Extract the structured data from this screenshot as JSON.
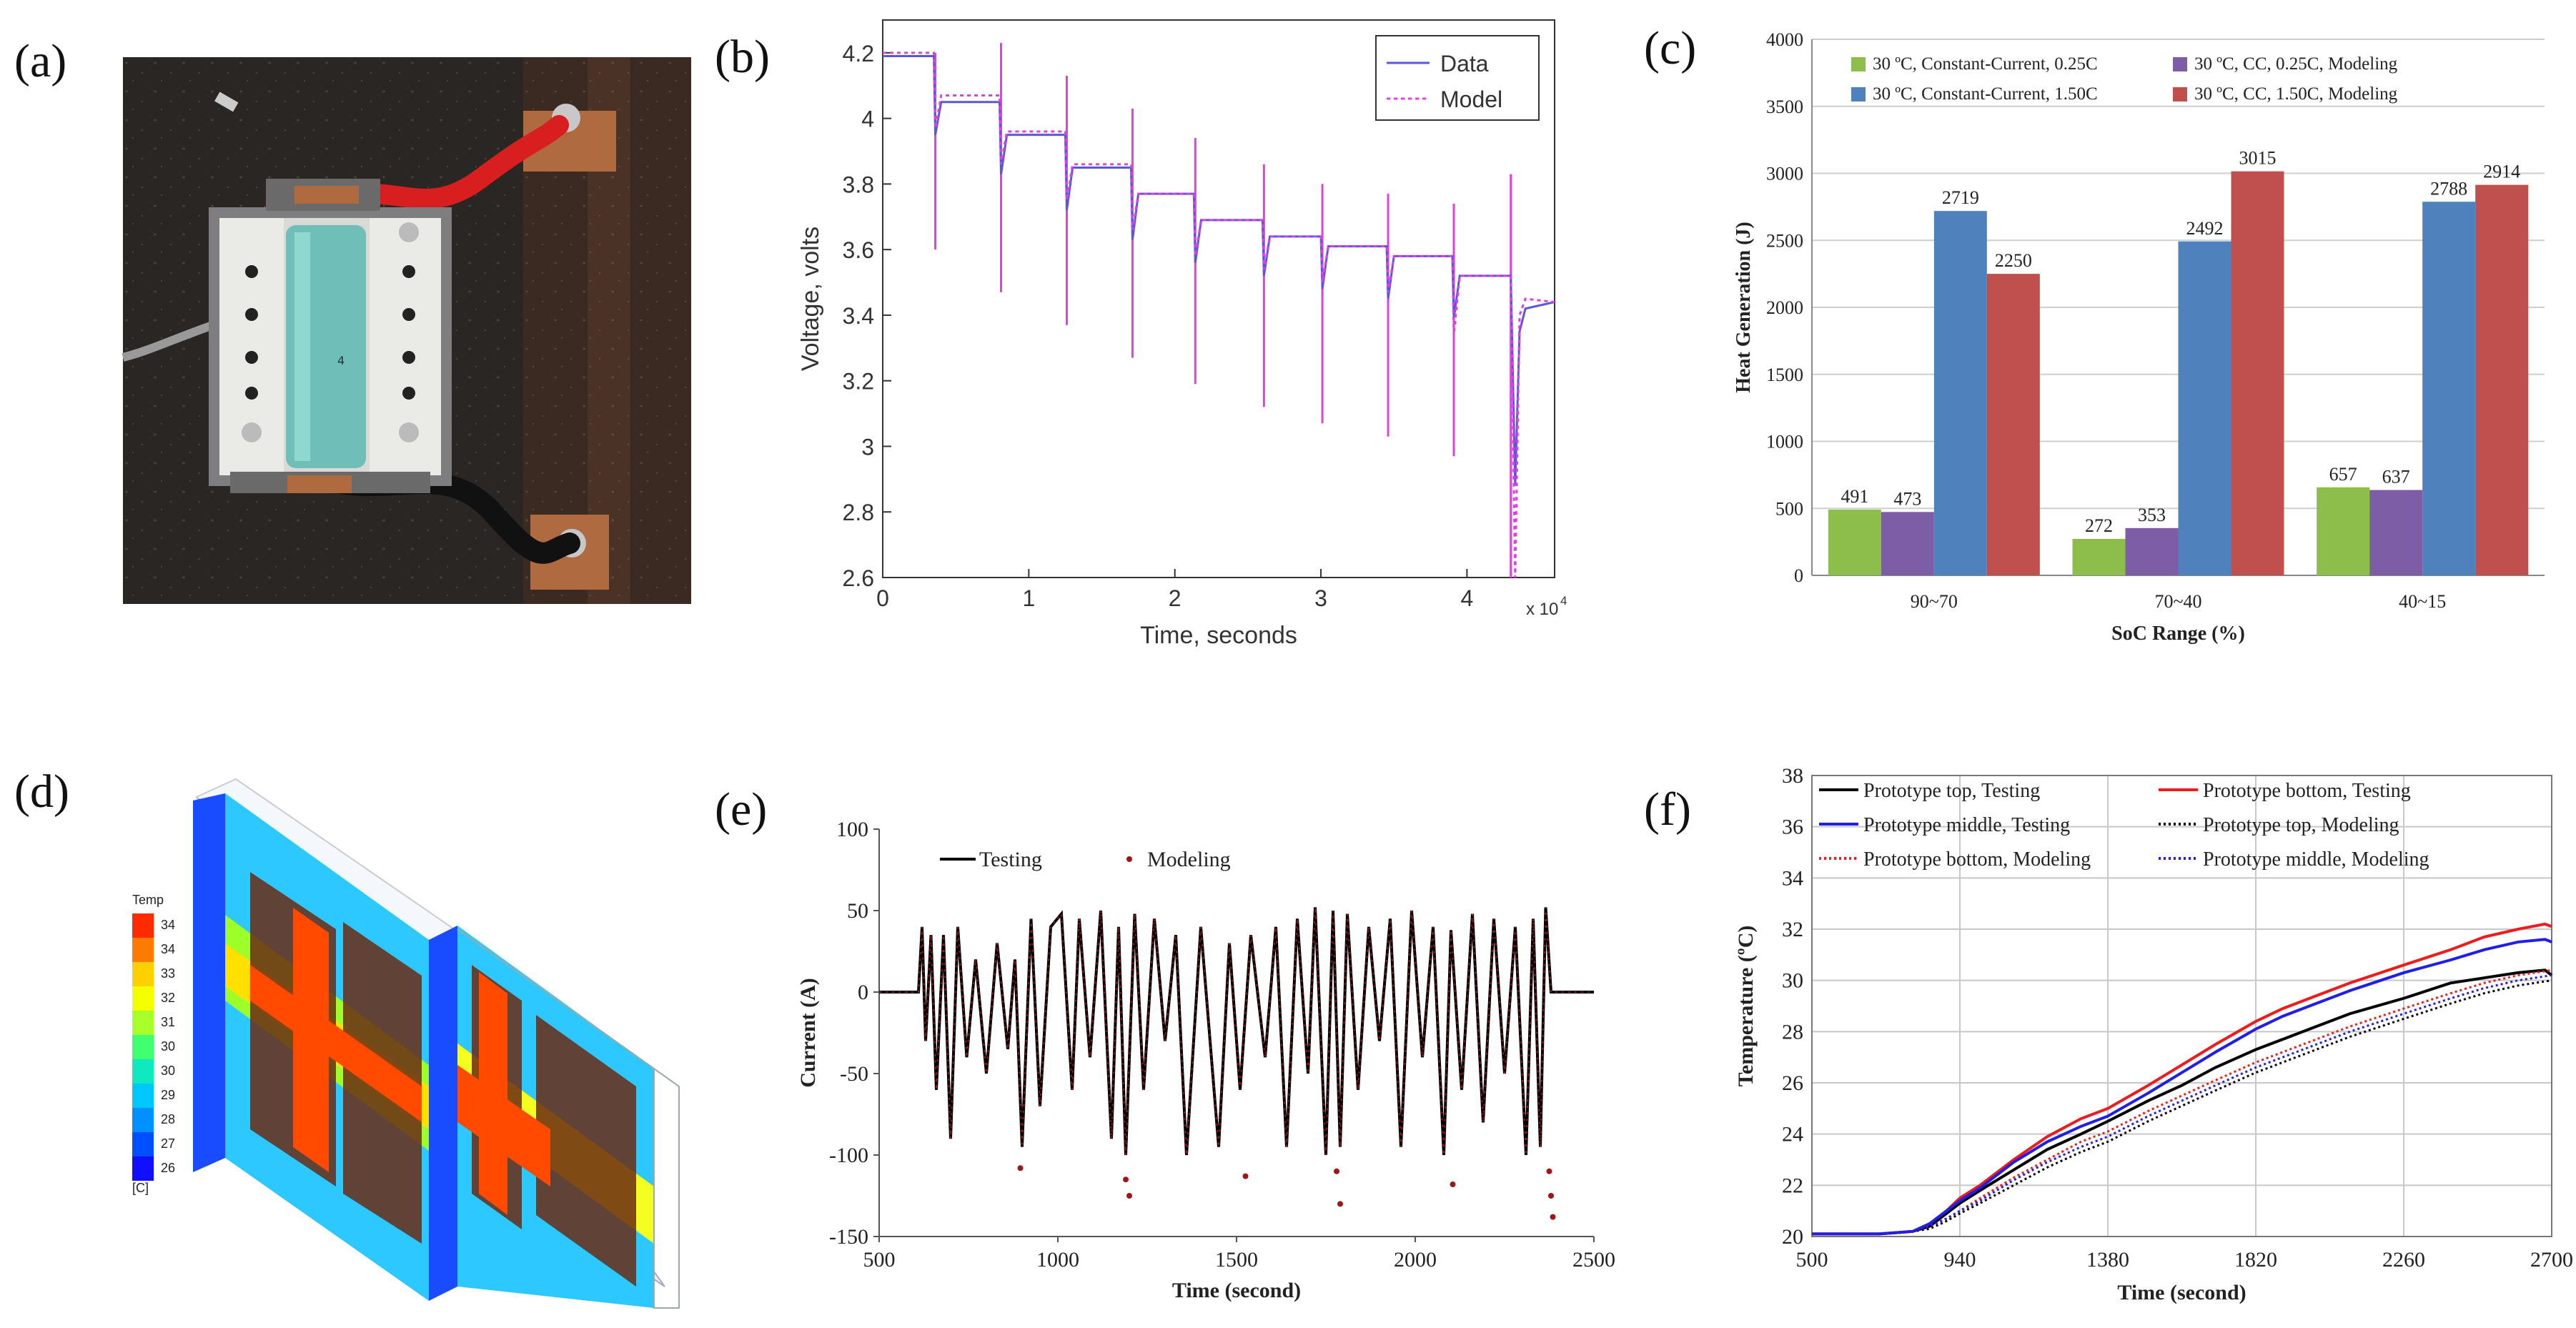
{
  "panels": {
    "a": {
      "label": "(a)"
    },
    "b": {
      "label": "(b)"
    },
    "c": {
      "label": "(c)"
    },
    "d": {
      "label": "(d)"
    },
    "e": {
      "label": "(e)"
    },
    "f": {
      "label": "(f)"
    }
  },
  "colors": {
    "b_data": "#5b56e0",
    "b_model": "#e040e0",
    "c_green": "#8dbd4a",
    "c_purple": "#7d5ea6",
    "c_blue": "#4f81bd",
    "c_red": "#c0504d",
    "e_testing": "#000000",
    "e_model": "#a01515",
    "f_black": "#000000",
    "f_red": "#ee1c1c",
    "f_blue": "#1f1fe8"
  },
  "photo": {
    "cell_label": "4"
  },
  "cfd": {
    "legend_title": "Temp",
    "legend_unit": "[C]",
    "legend_values": [
      "34",
      "34",
      "33",
      "32",
      "31",
      "30",
      "30",
      "29",
      "28",
      "27",
      "26"
    ],
    "legend_colors": [
      "#ff2a00",
      "#ff7a00",
      "#ffd000",
      "#f4ff00",
      "#a8ff2a",
      "#40ff70",
      "#10e8c0",
      "#00c8ff",
      "#0090ff",
      "#0050ff",
      "#1010ff"
    ]
  },
  "chart_data": [
    {
      "panel": "b",
      "type": "line",
      "xlabel": "Time, seconds",
      "ylabel": "Voltage, volts",
      "x_multiplier": "x 10",
      "x_exponent": "4",
      "xlim": [
        0,
        4.6
      ],
      "ylim": [
        2.6,
        4.3
      ],
      "xticks": [
        "0",
        "1",
        "2",
        "3",
        "4"
      ],
      "yticks": [
        "2.6",
        "2.8",
        "3",
        "3.2",
        "3.4",
        "3.6",
        "3.8",
        "4",
        "4.2"
      ],
      "series": [
        {
          "name": "Data",
          "style": "solid",
          "x": [
            0,
            0.35,
            0.36,
            0.4,
            0.8,
            0.81,
            0.85,
            1.25,
            1.26,
            1.3,
            1.7,
            1.71,
            1.75,
            2.13,
            2.14,
            2.18,
            2.6,
            2.61,
            2.65,
            3.0,
            3.01,
            3.05,
            3.45,
            3.46,
            3.5,
            3.9,
            3.91,
            3.95,
            4.3,
            4.33,
            4.36,
            4.4,
            4.6
          ],
          "y": [
            4.19,
            4.19,
            3.95,
            4.05,
            4.05,
            3.83,
            3.95,
            3.95,
            3.72,
            3.85,
            3.85,
            3.63,
            3.77,
            3.77,
            3.56,
            3.69,
            3.69,
            3.52,
            3.64,
            3.64,
            3.48,
            3.61,
            3.61,
            3.45,
            3.58,
            3.58,
            3.39,
            3.52,
            3.52,
            2.88,
            3.35,
            3.42,
            3.44
          ]
        },
        {
          "name": "Model",
          "style": "dotted",
          "x": [
            0,
            0.35,
            0.36,
            0.4,
            0.8,
            0.81,
            0.85,
            1.25,
            1.26,
            1.3,
            1.7,
            1.71,
            1.75,
            2.13,
            2.14,
            2.18,
            2.6,
            2.61,
            2.65,
            3.0,
            3.01,
            3.05,
            3.45,
            3.46,
            3.5,
            3.9,
            3.91,
            3.95,
            4.3,
            4.33,
            4.36,
            4.4,
            4.6
          ],
          "y": [
            4.2,
            4.2,
            3.97,
            4.07,
            4.07,
            3.86,
            3.96,
            3.96,
            3.75,
            3.86,
            3.86,
            3.66,
            3.77,
            3.77,
            3.58,
            3.69,
            3.69,
            3.54,
            3.64,
            3.64,
            3.5,
            3.61,
            3.61,
            3.47,
            3.58,
            3.58,
            3.34,
            3.52,
            3.52,
            2.6,
            3.4,
            3.45,
            3.44
          ]
        }
      ],
      "spikes": [
        {
          "x": 0.36,
          "low": 3.6,
          "high": 4.2
        },
        {
          "x": 0.81,
          "low": 3.47,
          "high": 4.23
        },
        {
          "x": 1.26,
          "low": 3.37,
          "high": 4.13
        },
        {
          "x": 1.71,
          "low": 3.27,
          "high": 4.03
        },
        {
          "x": 2.14,
          "low": 3.19,
          "high": 3.94
        },
        {
          "x": 2.61,
          "low": 3.12,
          "high": 3.86
        },
        {
          "x": 3.01,
          "low": 3.07,
          "high": 3.8
        },
        {
          "x": 3.46,
          "low": 3.03,
          "high": 3.77
        },
        {
          "x": 3.91,
          "low": 2.97,
          "high": 3.74
        },
        {
          "x": 4.3,
          "low": 2.6,
          "high": 3.83
        }
      ],
      "legend": [
        "Data",
        "Model"
      ]
    },
    {
      "panel": "c",
      "type": "bar",
      "xlabel": "SoC Range (%)",
      "ylabel": "Heat Generation  (J)",
      "ylim": [
        0,
        4000
      ],
      "yticks": [
        "0",
        "500",
        "1000",
        "1500",
        "2000",
        "2500",
        "3000",
        "3500",
        "4000"
      ],
      "categories": [
        "90~70",
        "70~40",
        "40~15"
      ],
      "series": [
        {
          "name": "30 ºC, Constant-Current, 0.25C",
          "values": [
            491,
            272,
            657
          ]
        },
        {
          "name": "30 ºC, CC, 0.25C, Modeling",
          "values": [
            473,
            353,
            637
          ]
        },
        {
          "name": "30 ºC, Constant-Current, 1.50C",
          "values": [
            2719,
            2492,
            2788
          ]
        },
        {
          "name": "30 ºC, CC, 1.50C, Modeling",
          "values": [
            2250,
            3015,
            2914
          ]
        }
      ]
    },
    {
      "panel": "e",
      "type": "line",
      "xlabel": "Time (second)",
      "ylabel": "Current  (A)",
      "xlim": [
        500,
        2500
      ],
      "ylim": [
        -150,
        100
      ],
      "xticks": [
        "500",
        "1000",
        "1500",
        "2000",
        "2500"
      ],
      "yticks": [
        "-150",
        "-100",
        "-50",
        "0",
        "50",
        "100"
      ],
      "series": [
        {
          "name": "Testing",
          "x": [
            500,
            610,
            620,
            630,
            645,
            660,
            680,
            700,
            720,
            745,
            770,
            800,
            830,
            860,
            880,
            900,
            925,
            950,
            980,
            1010,
            1040,
            1060,
            1090,
            1120,
            1150,
            1170,
            1190,
            1215,
            1240,
            1270,
            1300,
            1330,
            1360,
            1400,
            1450,
            1480,
            1510,
            1540,
            1580,
            1610,
            1640,
            1670,
            1700,
            1720,
            1750,
            1770,
            1790,
            1810,
            1840,
            1870,
            1900,
            1930,
            1960,
            1990,
            2020,
            2050,
            2080,
            2100,
            2130,
            2160,
            2190,
            2220,
            2250,
            2280,
            2310,
            2330,
            2350,
            2365,
            2380,
            2500
          ],
          "y": [
            0,
            0,
            40,
            -30,
            35,
            -60,
            35,
            -90,
            40,
            -40,
            20,
            -50,
            30,
            -35,
            20,
            -95,
            45,
            -70,
            40,
            48,
            -60,
            45,
            -40,
            50,
            -90,
            40,
            -100,
            48,
            -60,
            45,
            -30,
            35,
            -100,
            40,
            -95,
            30,
            -60,
            35,
            -40,
            40,
            -95,
            45,
            -50,
            52,
            -100,
            50,
            -95,
            48,
            -60,
            40,
            -30,
            45,
            -95,
            50,
            -40,
            40,
            -100,
            38,
            -60,
            48,
            -80,
            45,
            -50,
            40,
            -100,
            45,
            -95,
            52,
            0,
            0
          ]
        },
        {
          "name": "Modeling",
          "x": [
            895,
            1190,
            1200,
            1525,
            1780,
            1790,
            2105,
            2375,
            2380,
            2385
          ],
          "y": [
            -108,
            -115,
            -125,
            -113,
            -110,
            -130,
            -118,
            -110,
            -125,
            -138
          ]
        }
      ]
    },
    {
      "panel": "f",
      "type": "line",
      "xlabel": "Time (second)",
      "ylabel": "Temperature  (ºC)",
      "xlim": [
        500,
        2700
      ],
      "ylim": [
        20,
        38
      ],
      "xticks": [
        "500",
        "940",
        "1380",
        "1820",
        "2260",
        "2700"
      ],
      "yticks": [
        "20",
        "22",
        "24",
        "26",
        "28",
        "30",
        "32",
        "34",
        "36",
        "38"
      ],
      "series": [
        {
          "name": "Prototype top, Testing",
          "style": "solid",
          "color": "black",
          "x": [
            500,
            600,
            700,
            800,
            850,
            900,
            940,
            1000,
            1100,
            1200,
            1300,
            1380,
            1500,
            1600,
            1700,
            1820,
            1900,
            2000,
            2100,
            2260,
            2400,
            2500,
            2600,
            2680,
            2700
          ],
          "y": [
            20.1,
            20.1,
            20.1,
            20.2,
            20.4,
            20.9,
            21.3,
            21.8,
            22.6,
            23.4,
            24.0,
            24.5,
            25.3,
            25.9,
            26.6,
            27.3,
            27.7,
            28.2,
            28.7,
            29.3,
            29.9,
            30.1,
            30.3,
            30.4,
            30.2
          ]
        },
        {
          "name": "Prototype bottom, Testing",
          "style": "solid",
          "color": "red",
          "x": [
            500,
            600,
            700,
            800,
            850,
            900,
            940,
            1000,
            1100,
            1200,
            1300,
            1380,
            1500,
            1600,
            1700,
            1820,
            1900,
            2000,
            2100,
            2260,
            2400,
            2500,
            2600,
            2680,
            2700
          ],
          "y": [
            20.1,
            20.1,
            20.1,
            20.2,
            20.5,
            21.0,
            21.5,
            22.0,
            23.0,
            23.9,
            24.6,
            25.0,
            25.9,
            26.7,
            27.5,
            28.4,
            28.9,
            29.4,
            29.9,
            30.6,
            31.2,
            31.7,
            32.0,
            32.2,
            32.1
          ]
        },
        {
          "name": "Prototype middle, Testing",
          "style": "solid",
          "color": "blue",
          "x": [
            500,
            600,
            700,
            800,
            850,
            900,
            940,
            1000,
            1100,
            1200,
            1300,
            1380,
            1500,
            1600,
            1700,
            1820,
            1900,
            2000,
            2100,
            2260,
            2400,
            2500,
            2600,
            2680,
            2700
          ],
          "y": [
            20.1,
            20.1,
            20.1,
            20.2,
            20.5,
            21.0,
            21.4,
            21.9,
            22.9,
            23.7,
            24.3,
            24.7,
            25.6,
            26.4,
            27.2,
            28.1,
            28.6,
            29.1,
            29.6,
            30.3,
            30.8,
            31.2,
            31.5,
            31.6,
            31.5
          ]
        },
        {
          "name": "Prototype top, Modeling",
          "style": "dotted",
          "color": "black",
          "x": [
            500,
            600,
            700,
            800,
            850,
            900,
            940,
            1000,
            1100,
            1200,
            1300,
            1380,
            1500,
            1600,
            1700,
            1820,
            1900,
            2000,
            2100,
            2260,
            2400,
            2500,
            2600,
            2700
          ],
          "y": [
            20.1,
            20.1,
            20.1,
            20.2,
            20.3,
            20.6,
            20.9,
            21.3,
            22.0,
            22.7,
            23.3,
            23.7,
            24.5,
            25.1,
            25.7,
            26.4,
            26.8,
            27.3,
            27.8,
            28.5,
            29.1,
            29.5,
            29.8,
            30.0
          ]
        },
        {
          "name": "Prototype bottom, Modeling",
          "style": "dotted",
          "color": "red",
          "x": [
            500,
            600,
            700,
            800,
            850,
            900,
            940,
            1000,
            1100,
            1200,
            1300,
            1380,
            1500,
            1600,
            1700,
            1820,
            1900,
            2000,
            2100,
            2260,
            2400,
            2500,
            2600,
            2700
          ],
          "y": [
            20.1,
            20.1,
            20.1,
            20.2,
            20.4,
            20.7,
            21.0,
            21.5,
            22.3,
            23.0,
            23.7,
            24.1,
            24.9,
            25.5,
            26.1,
            26.8,
            27.2,
            27.7,
            28.2,
            28.9,
            29.5,
            29.9,
            30.2,
            30.4
          ]
        },
        {
          "name": "Prototype middle, Modeling",
          "style": "dotted",
          "color": "blue",
          "x": [
            500,
            600,
            700,
            800,
            850,
            900,
            940,
            1000,
            1100,
            1200,
            1300,
            1380,
            1500,
            1600,
            1700,
            1820,
            1900,
            2000,
            2100,
            2260,
            2400,
            2500,
            2600,
            2700
          ],
          "y": [
            20.1,
            20.1,
            20.1,
            20.2,
            20.4,
            20.7,
            21.0,
            21.4,
            22.2,
            22.9,
            23.5,
            23.9,
            24.7,
            25.3,
            25.9,
            26.6,
            27.0,
            27.5,
            28.0,
            28.7,
            29.3,
            29.7,
            30.0,
            30.2
          ]
        }
      ]
    }
  ]
}
